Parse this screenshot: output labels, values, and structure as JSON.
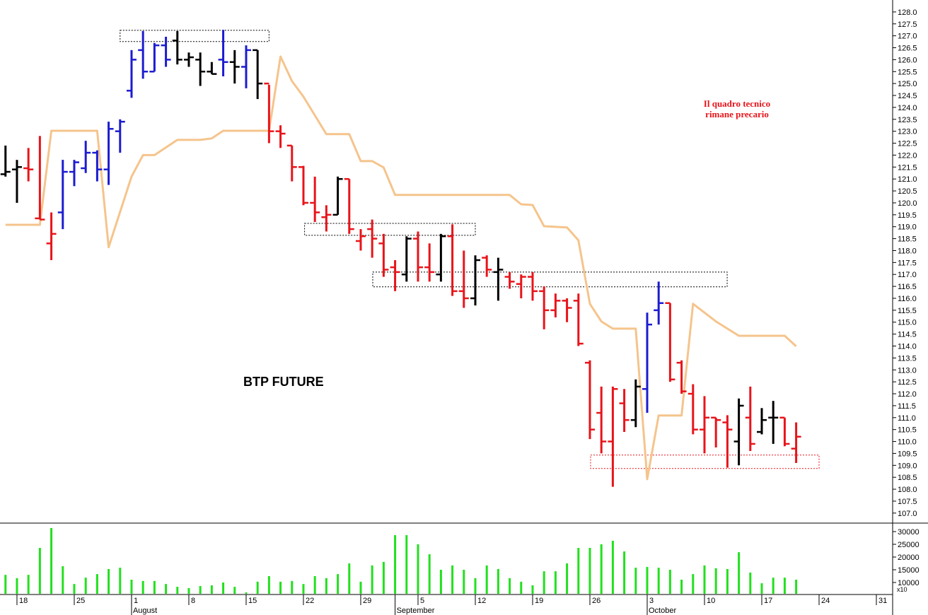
{
  "chart_data": [
    {
      "type": "ohlc",
      "x": [
        -1,
        0,
        1,
        2,
        3,
        4,
        5,
        6,
        7,
        8,
        9,
        10,
        11,
        12,
        13,
        14,
        15,
        16,
        17,
        18,
        19,
        20,
        21,
        22,
        23,
        24,
        25,
        26,
        27,
        28,
        29,
        30,
        31,
        32,
        33,
        34,
        35,
        36,
        37,
        38,
        39,
        40,
        41,
        42,
        43,
        44,
        45,
        46,
        47,
        48,
        49,
        50,
        51,
        52,
        53,
        54,
        55,
        56,
        57,
        58,
        59,
        60,
        61,
        62,
        63,
        64,
        65,
        66,
        67,
        68
      ],
      "high": [
        122.4,
        121.8,
        122.3,
        122.8,
        119.6,
        121.8,
        121.8,
        122.6,
        122.2,
        123.4,
        123.5,
        126.4,
        127.2,
        126.7,
        126.96,
        127.2,
        126.3,
        126.3,
        125.9,
        127.25,
        126.4,
        126.6,
        126.4,
        124.95,
        123.25,
        122.4,
        121.55,
        121.1,
        119.9,
        121.1,
        121.0,
        118.9,
        119.3,
        118.7,
        117.6,
        118.6,
        118.8,
        118.3,
        118.7,
        119.1,
        118.0,
        117.8,
        117.8,
        117.7,
        117.1,
        117.0,
        117.1,
        116.5,
        116.2,
        116.0,
        116.2,
        113.4,
        112.3,
        112.3,
        112.2,
        112.6,
        115.4,
        116.7,
        115.8,
        113.4,
        112.4,
        111.9,
        111.0,
        111.1,
        111.8,
        112.3,
        111.4,
        111.7,
        111.0,
        110.8
      ],
      "low": [
        121.1,
        120.0,
        120.9,
        119.3,
        117.6,
        118.9,
        120.7,
        121.25,
        120.9,
        120.75,
        122.1,
        124.4,
        125.2,
        125.5,
        125.7,
        125.8,
        125.7,
        124.9,
        125.4,
        125.3,
        125.0,
        124.8,
        124.35,
        122.5,
        122.3,
        120.9,
        119.9,
        119.2,
        118.8,
        119.5,
        118.7,
        118.0,
        117.7,
        116.9,
        116.3,
        116.7,
        116.7,
        116.7,
        116.7,
        116.1,
        115.6,
        115.7,
        116.9,
        115.9,
        116.4,
        116.0,
        115.9,
        114.7,
        115.2,
        115.0,
        114.0,
        110.1,
        109.5,
        108.1,
        110.4,
        110.6,
        111.2,
        114.9,
        112.5,
        112.0,
        110.3,
        109.5,
        109.75,
        108.9,
        109.0,
        109.6,
        110.3,
        109.9,
        109.8,
        109.1
      ],
      "open": [
        121.2,
        121.4,
        121.45,
        119.35,
        118.3,
        119.6,
        121.3,
        121.45,
        122.1,
        121.4,
        123.0,
        124.7,
        126.4,
        125.5,
        126.6,
        126.8,
        126.0,
        126.0,
        125.5,
        126.0,
        125.9,
        125.7,
        126.4,
        125.0,
        123.0,
        122.4,
        121.5,
        120.0,
        119.4,
        119.5,
        121.0,
        118.4,
        118.9,
        118.3,
        117.3,
        117.0,
        118.5,
        117.3,
        117.0,
        118.6,
        116.3,
        116.0,
        117.7,
        117.1,
        116.9,
        116.6,
        116.9,
        116.3,
        115.5,
        115.9,
        115.9,
        113.3,
        111.2,
        110.0,
        111.6,
        110.9,
        112.2,
        115.5,
        115.8,
        113.3,
        112.0,
        110.5,
        111.0,
        110.8,
        110.0,
        111.0,
        110.4,
        111.0,
        111.0,
        109.7
      ],
      "close": [
        121.3,
        121.5,
        121.4,
        119.3,
        118.7,
        121.3,
        121.7,
        122.1,
        121.4,
        123.1,
        123.4,
        126.0,
        125.5,
        126.6,
        126.0,
        126.0,
        126.1,
        125.5,
        125.4,
        125.9,
        125.7,
        126.4,
        125.0,
        123.0,
        122.9,
        121.5,
        120.0,
        119.6,
        119.5,
        121.0,
        118.9,
        118.6,
        118.5,
        117.2,
        117.1,
        118.5,
        117.3,
        117.1,
        118.6,
        116.3,
        116.0,
        117.6,
        117.2,
        117.2,
        116.7,
        116.9,
        116.3,
        115.5,
        115.9,
        115.6,
        114.1,
        110.5,
        110.0,
        112.2,
        110.9,
        112.3,
        114.9,
        115.8,
        112.6,
        112.1,
        110.5,
        111.0,
        110.9,
        110.5,
        111.5,
        109.9,
        110.9,
        111.0,
        109.9,
        110.2
      ],
      "bar_colors": [
        "#000000",
        "#000000",
        "#e8141a",
        "#e8141a",
        "#e8141a",
        "#1c1cd0",
        "#1c1cd0",
        "#1c1cd0",
        "#1c1cd0",
        "#1c1cd0",
        "#1c1cd0",
        "#1c1cd0",
        "#1c1cd0",
        "#1c1cd0",
        "#1c1cd0",
        "#000000",
        "#000000",
        "#000000",
        "#000000",
        "#1c1cd0",
        "#000000",
        "#1c1cd0",
        "#000000",
        "#e8141a",
        "#e8141a",
        "#e8141a",
        "#e8141a",
        "#e8141a",
        "#e8141a",
        "#000000",
        "#e8141a",
        "#e8141a",
        "#e8141a",
        "#e8141a",
        "#e8141a",
        "#000000",
        "#e8141a",
        "#e8141a",
        "#000000",
        "#e8141a",
        "#e8141a",
        "#000000",
        "#e8141a",
        "#000000",
        "#e8141a",
        "#e8141a",
        "#e8141a",
        "#e8141a",
        "#e8141a",
        "#e8141a",
        "#e8141a",
        "#e8141a",
        "#e8141a",
        "#e8141a",
        "#e8141a",
        "#000000",
        "#1c1cd0",
        "#1c1cd0",
        "#e8141a",
        "#e8141a",
        "#e8141a",
        "#e8141a",
        "#e8141a",
        "#e8141a",
        "#000000",
        "#e8141a",
        "#000000",
        "#000000",
        "#e8141a",
        "#e8141a"
      ],
      "line": {
        "color": "#f5c48c",
        "x": [
          -1,
          2,
          3,
          7,
          8,
          10,
          11,
          12,
          14,
          16,
          17,
          18,
          22,
          23,
          24,
          25,
          27,
          29,
          30,
          31,
          32,
          33,
          43,
          44,
          45,
          46,
          48,
          49,
          50,
          51,
          52,
          54,
          55,
          56,
          58,
          59,
          61,
          63,
          67,
          68
        ],
        "values": [
          119.08,
          119.08,
          123.02,
          123.02,
          118.14,
          121.1,
          122.0,
          122.0,
          122.64,
          122.64,
          122.7,
          123.02,
          123.02,
          126.13,
          125.1,
          124.45,
          122.88,
          122.88,
          121.75,
          121.75,
          121.48,
          120.33,
          120.33,
          119.94,
          119.91,
          119.02,
          118.97,
          118.43,
          115.77,
          115.03,
          114.73,
          114.73,
          108.42,
          111.09,
          111.09,
          115.77,
          115.03,
          114.43,
          114.43,
          113.99
        ]
      },
      "boxes": [
        {
          "x": [
            9,
            22
          ],
          "y": [
            126.76,
            127.23
          ],
          "color": "#000000"
        },
        {
          "x": [
            25.1,
            40
          ],
          "y": [
            118.64,
            119.14
          ],
          "color": "#000000"
        },
        {
          "x": [
            31.05,
            61.98
          ],
          "y": [
            116.48,
            117.1
          ],
          "color": "#000000"
        },
        {
          "x": [
            50.06,
            70
          ],
          "y": [
            108.87,
            109.43
          ],
          "color": "#e8141a"
        }
      ],
      "annotations": [
        "BTP FUTURE",
        "Il quadro tecnico",
        "rimane precario"
      ],
      "xlim": [
        -1.48,
        76.42
      ],
      "ylim": [
        106.58,
        128.5
      ],
      "yticks": [
        {
          "value": 107,
          "label": "107.0"
        },
        107.5,
        {
          "value": 108,
          "label": "108.0"
        },
        108.5,
        {
          "value": 109,
          "label": "109.0"
        },
        109.5,
        {
          "value": 110,
          "label": "110.0"
        },
        110.5,
        {
          "value": 111,
          "label": "111.0"
        },
        111.5,
        {
          "value": 112,
          "label": "112.0"
        },
        112.5,
        {
          "value": 113,
          "label": "113.0"
        },
        113.5,
        {
          "value": 114,
          "label": "114.0"
        },
        114.5,
        {
          "value": 115,
          "label": "115.0"
        },
        115.5,
        {
          "value": 116,
          "label": "116.0"
        },
        116.5,
        {
          "value": 117,
          "label": "117.0"
        },
        117.5,
        {
          "value": 118,
          "label": "118.0"
        },
        118.5,
        {
          "value": 119,
          "label": "119.0"
        },
        119.5,
        {
          "value": 120,
          "label": "120.0"
        },
        120.5,
        {
          "value": 121,
          "label": "121.0"
        },
        121.5,
        {
          "value": 122,
          "label": "122.0"
        },
        122.5,
        {
          "value": 123,
          "label": "123.0"
        },
        123.5,
        {
          "value": 124,
          "label": "124.0"
        },
        124.5,
        {
          "value": 125,
          "label": "125.0"
        },
        125.5,
        {
          "value": 126,
          "label": "126.0"
        },
        126.5,
        {
          "value": 127,
          "label": "127.0"
        },
        127.5,
        {
          "value": 128,
          "label": "128.0"
        }
      ]
    },
    {
      "type": "bar",
      "x": [
        -1,
        0,
        1,
        2,
        3,
        4,
        5,
        6,
        7,
        8,
        9,
        10,
        11,
        12,
        13,
        14,
        15,
        16,
        17,
        18,
        19,
        20,
        21,
        22,
        23,
        24,
        25,
        26,
        27,
        28,
        29,
        30,
        31,
        32,
        33,
        34,
        35,
        36,
        37,
        38,
        39,
        40,
        41,
        42,
        43,
        44,
        45,
        46,
        47,
        48,
        49,
        50,
        51,
        52,
        53,
        54,
        55,
        56,
        57,
        58,
        59,
        60,
        61,
        62,
        63,
        64,
        65,
        66,
        67,
        68
      ],
      "values": [
        13000,
        11700,
        13000,
        23600,
        31400,
        16400,
        9400,
        11900,
        13300,
        15300,
        15800,
        11100,
        10600,
        10600,
        9400,
        8300,
        7800,
        8600,
        8900,
        10000,
        8300,
        6100,
        10300,
        12500,
        10300,
        10600,
        9400,
        12500,
        11700,
        13300,
        17500,
        10300,
        16700,
        18100,
        28600,
        28600,
        25000,
        21100,
        15000,
        16700,
        15000,
        11700,
        16700,
        15300,
        11700,
        10300,
        8900,
        14400,
        14400,
        17500,
        23600,
        23600,
        25000,
        26400,
        22200,
        15800,
        16100,
        15800,
        15000,
        11100,
        13300,
        16700,
        15600,
        15300,
        21900,
        13900,
        9700,
        11900,
        11900,
        11100
      ],
      "color": "#22e01e",
      "ylim": [
        5556,
        33056
      ],
      "yticks": [
        10000,
        15000,
        20000,
        25000,
        30000
      ],
      "y_unit": "x10",
      "xlim": [
        -1.48,
        76.42
      ],
      "xticks": [
        {
          "value": 0,
          "label": "18"
        },
        {
          "value": 5,
          "label": "25"
        },
        {
          "value": 10,
          "label": "1"
        },
        {
          "value": 15,
          "label": "8"
        },
        {
          "value": 20,
          "label": "15"
        },
        {
          "value": 25,
          "label": "22"
        },
        {
          "value": 30,
          "label": "29"
        },
        {
          "value": 35,
          "label": "5"
        },
        {
          "value": 40,
          "label": "12"
        },
        {
          "value": 45,
          "label": "19"
        },
        {
          "value": 50,
          "label": "26"
        },
        {
          "value": 55,
          "label": "3"
        },
        {
          "value": 60,
          "label": "10"
        },
        {
          "value": 65,
          "label": "17"
        },
        {
          "value": 70,
          "label": "24"
        },
        {
          "value": 75,
          "label": "31"
        }
      ],
      "month_ticks": [
        {
          "value": 10,
          "label": "August"
        },
        {
          "value": 33,
          "label": "September"
        },
        {
          "value": 55,
          "label": "October"
        }
      ]
    }
  ]
}
